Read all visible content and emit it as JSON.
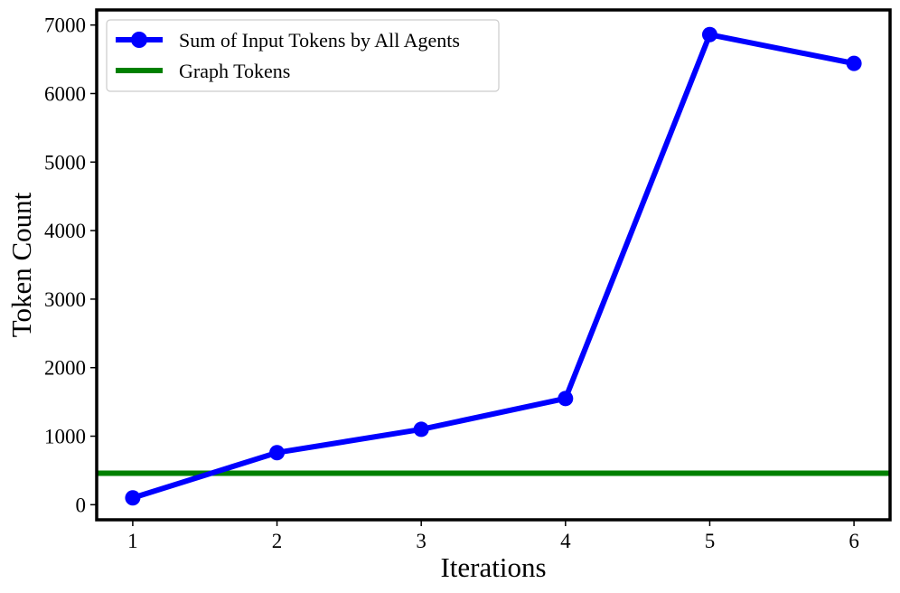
{
  "chart_data": {
    "type": "line",
    "xlabel": "Iterations",
    "ylabel": "Token Count",
    "xlim": [
      0.75,
      6.25
    ],
    "ylim": [
      -220,
      7220
    ],
    "x_ticks": [
      1,
      2,
      3,
      4,
      5,
      6
    ],
    "y_ticks": [
      0,
      1000,
      2000,
      3000,
      4000,
      5000,
      6000,
      7000
    ],
    "grid": false,
    "legend_position": "top-left",
    "series": [
      {
        "name": "Sum of Input Tokens by All Agents",
        "color": "#0000ff",
        "marker": "circle",
        "x": [
          1,
          2,
          3,
          4,
          5,
          6
        ],
        "y": [
          100,
          760,
          1100,
          1550,
          6860,
          6440
        ]
      }
    ],
    "hlines": [
      {
        "name": "Graph Tokens",
        "color": "#008000",
        "y": 460
      }
    ]
  }
}
